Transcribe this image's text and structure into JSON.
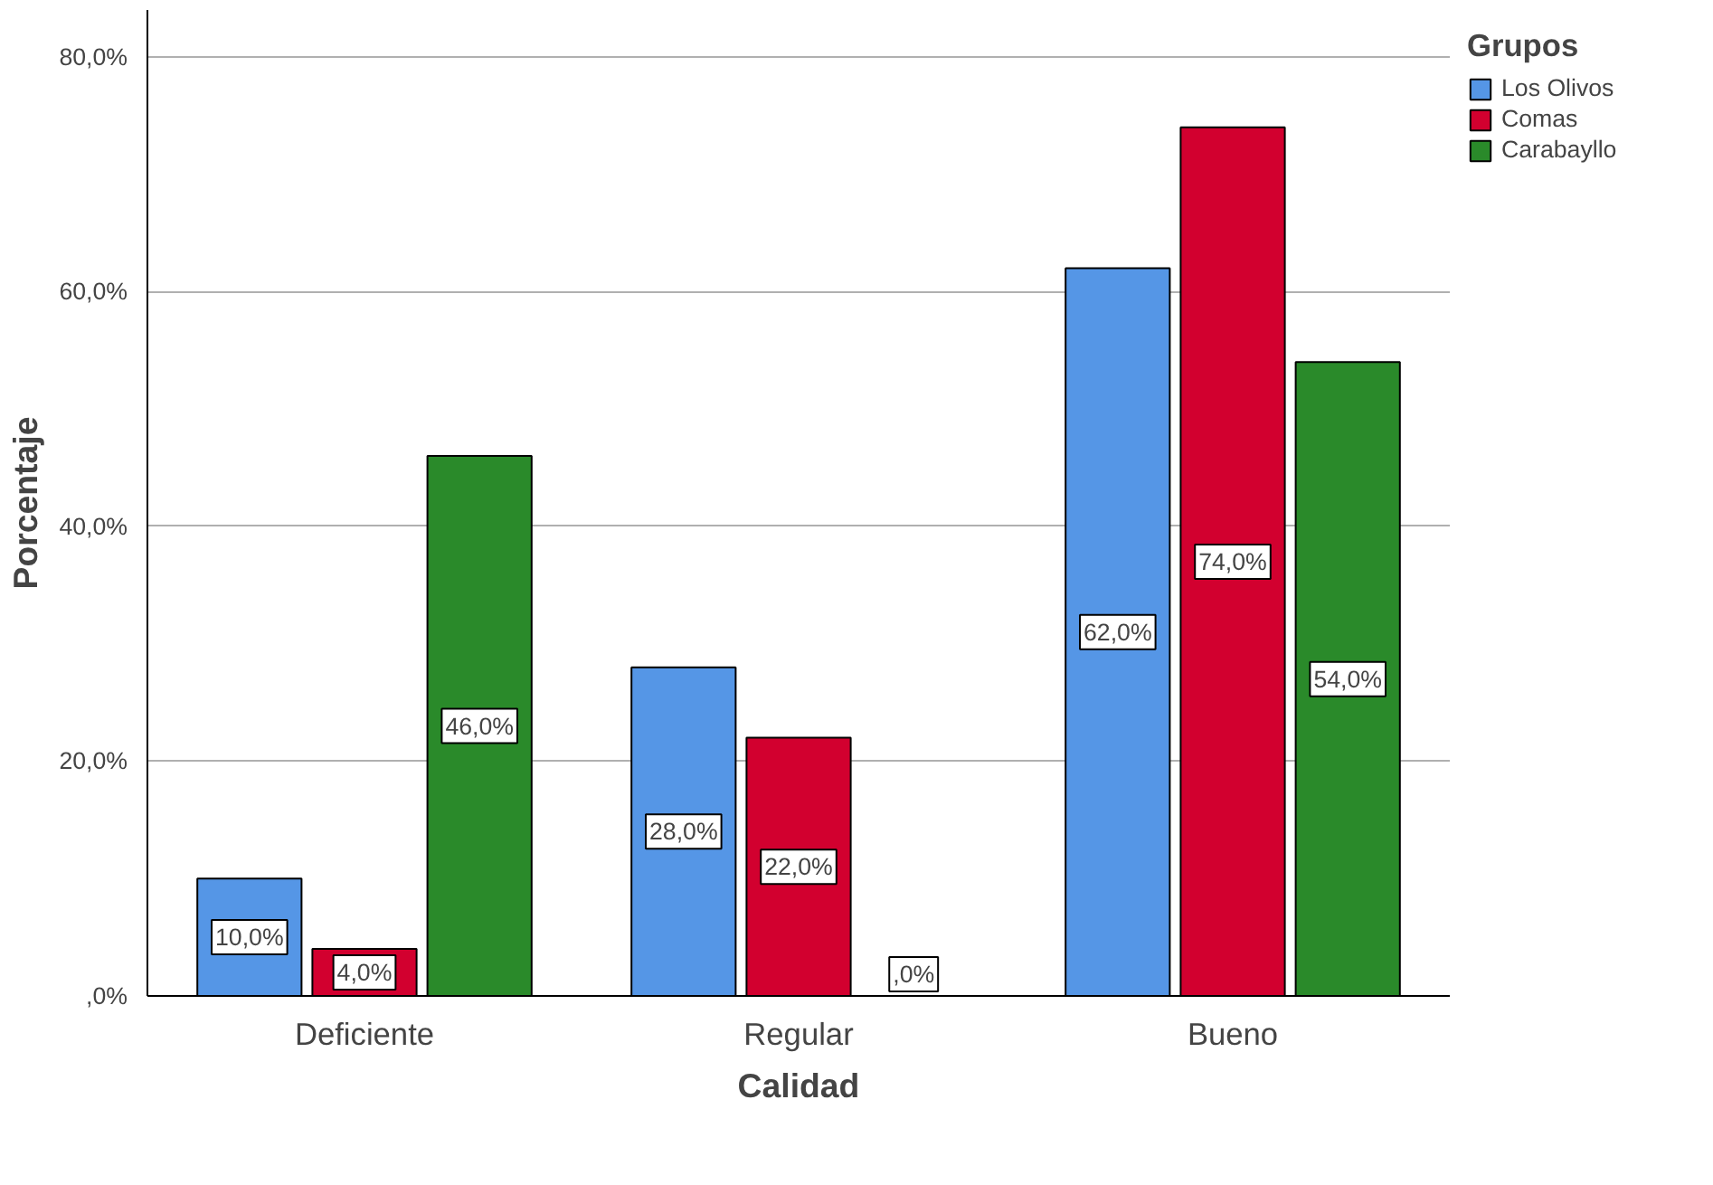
{
  "chart_data": {
    "type": "bar",
    "xlabel": "Calidad",
    "ylabel": "Porcentaje",
    "legend_title": "Grupos",
    "categories": [
      "Deficiente",
      "Regular",
      "Bueno"
    ],
    "series": [
      {
        "name": "Los Olivos",
        "color": "#5596e6",
        "values": [
          10,
          28,
          62
        ],
        "value_labels": [
          "10,0%",
          "28,0%",
          "62,0%"
        ]
      },
      {
        "name": "Comas",
        "color": "#d2002f",
        "values": [
          4,
          22,
          74
        ],
        "value_labels": [
          "4,0%",
          "22,0%",
          "74,0%"
        ]
      },
      {
        "name": "Carabayllo",
        "color": "#2a8a2a",
        "values": [
          46,
          0,
          54
        ],
        "value_labels": [
          "46,0%",
          ",0%",
          "54,0%"
        ]
      }
    ],
    "ylim": [
      0,
      84
    ],
    "yticks": [
      {
        "value": 0,
        "label": ",0%"
      },
      {
        "value": 20,
        "label": "20,0%"
      },
      {
        "value": 40,
        "label": "40,0%"
      },
      {
        "value": 60,
        "label": "60,0%"
      },
      {
        "value": 80,
        "label": "80,0%"
      }
    ],
    "grid": "y",
    "legend": "top right"
  }
}
